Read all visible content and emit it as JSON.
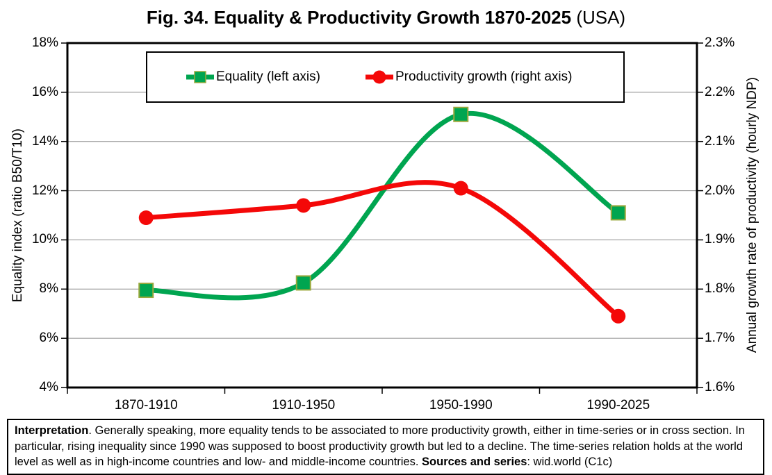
{
  "title": {
    "bold": "Fig. 34. Equality & Productivity Growth 1870-2025",
    "normal": " (USA)"
  },
  "legend": {
    "equality_label": "Equality (left axis)",
    "productivity_label": "Productivity growth (right axis)"
  },
  "left_axis": {
    "label": "Equality index (ratio B50/T10)",
    "ticks": [
      "18%",
      "16%",
      "14%",
      "12%",
      "10%",
      "8%",
      "6%",
      "4%"
    ]
  },
  "right_axis": {
    "label": "Annual growth rate of productivity (hourly NDP)",
    "ticks": [
      "2.3%",
      "2.2%",
      "2.1%",
      "2.0%",
      "1.9%",
      "1.8%",
      "1.7%",
      "1.6%"
    ]
  },
  "x_axis": {
    "categories": [
      "1870-1910",
      "1910-1950",
      "1950-1990",
      "1990-2025"
    ]
  },
  "colors": {
    "equality": "#00A550",
    "equality_marker_border": "#9AA83C",
    "productivity": "#F40808",
    "gridline": "#8C8C8C",
    "axis": "#000000"
  },
  "chart_data": {
    "type": "line",
    "title": "Fig. 34. Equality & Productivity Growth 1870-2025 (USA)",
    "categories": [
      "1870-1910",
      "1910-1950",
      "1950-1990",
      "1990-2025"
    ],
    "series": [
      {
        "name": "Equality (left axis)",
        "axis": "left",
        "marker": "square",
        "color": "#00A550",
        "values": [
          7.95,
          8.25,
          15.1,
          11.1
        ],
        "unit": "%"
      },
      {
        "name": "Productivity growth (right axis)",
        "axis": "right",
        "marker": "circle",
        "color": "#F40808",
        "values": [
          1.945,
          1.97,
          2.005,
          1.745
        ],
        "unit": "%"
      }
    ],
    "left_ylabel": "Equality index (ratio B50/T10)",
    "right_ylabel": "Annual growth rate of productivity (hourly NDP)",
    "left_ylim": [
      4,
      18
    ],
    "left_tick_step": 2,
    "right_ylim": [
      1.6,
      2.3
    ],
    "right_tick_step": 0.1,
    "grid": true,
    "line_style": "smoothed",
    "legend_position": "top"
  },
  "interpretation": {
    "lead": "Interpretation",
    "body": ". Generally speaking, more equality tends to be associated to more productivity growth, either in time-series or in cross section. In particular, rising inequality since 1990 was supposed to boost productivity growth but led to a decline. The time-series relation holds at the world level as well as in high-income countries and low- and middle-income countries. ",
    "sources_label": "Sources and series",
    "tail": ": wid.world (C1c)"
  }
}
